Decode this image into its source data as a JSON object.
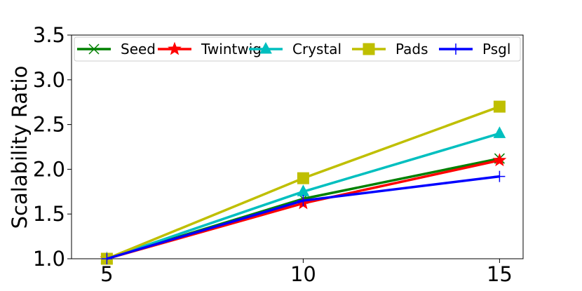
{
  "chart_data": {
    "type": "line",
    "title": "",
    "xlabel": "",
    "ylabel": "Scalability Ratio",
    "x": [
      5,
      10,
      15
    ],
    "x_tick_labels": [
      "5",
      "10",
      "15"
    ],
    "ylim": [
      1.0,
      3.5
    ],
    "y_tick_labels": [
      "1.0",
      "1.5",
      "2.0",
      "2.5",
      "3.0",
      "3.5"
    ],
    "grid": false,
    "legend_position": "top",
    "series": [
      {
        "name": "Seed",
        "values": [
          1.0,
          1.67,
          2.12
        ],
        "color": "#008000",
        "marker": "x"
      },
      {
        "name": "Twintwig",
        "values": [
          1.0,
          1.62,
          2.1
        ],
        "color": "#ff0000",
        "marker": "star"
      },
      {
        "name": "Crystal",
        "values": [
          1.0,
          1.75,
          2.4
        ],
        "color": "#00bfbf",
        "marker": "triangle"
      },
      {
        "name": "Pads",
        "values": [
          1.0,
          1.9,
          2.7
        ],
        "color": "#bfbf00",
        "marker": "square"
      },
      {
        "name": "Psgl",
        "values": [
          1.0,
          1.65,
          1.92
        ],
        "color": "#0000ff",
        "marker": "plus"
      }
    ]
  }
}
